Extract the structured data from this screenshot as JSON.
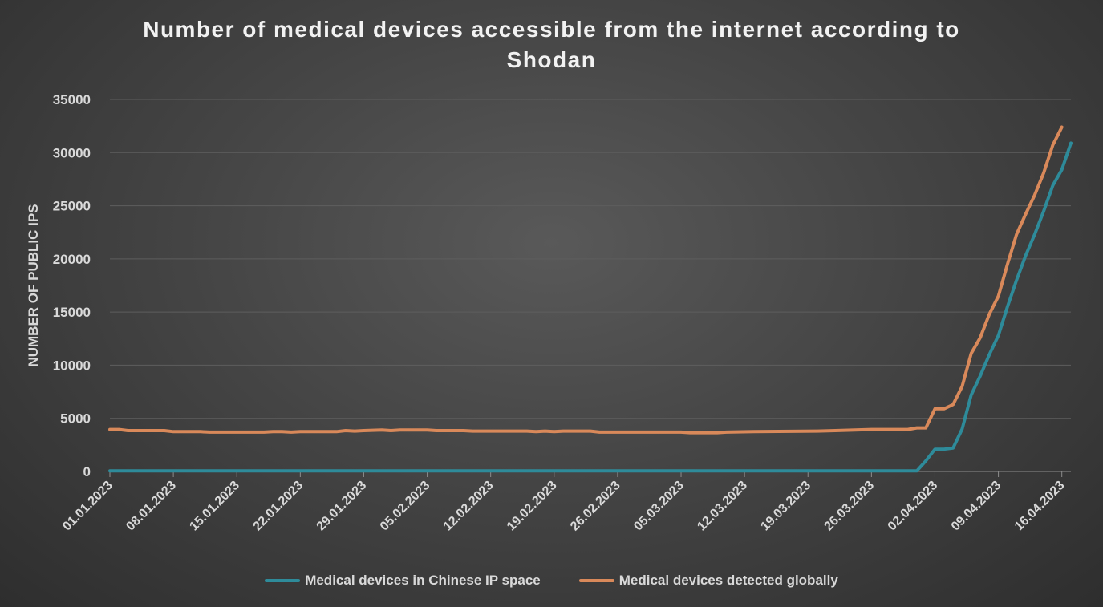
{
  "chart_data": {
    "type": "line",
    "title_line1": "Number of medical devices accessible from the internet according to",
    "title_line2": "Shodan",
    "xlabel": "",
    "ylabel": "NUMBER OF PUBLIC IPS",
    "ylim": [
      0,
      35000
    ],
    "yticks": [
      0,
      5000,
      10000,
      15000,
      20000,
      25000,
      30000,
      35000
    ],
    "x_start": "2023-01-01",
    "x_end": "2023-04-17",
    "xticks": [
      "01.01.2023",
      "08.01.2023",
      "15.01.2023",
      "22.01.2023",
      "29.01.2023",
      "05.02.2023",
      "12.02.2023",
      "19.02.2023",
      "26.02.2023",
      "05.03.2023",
      "12.03.2023",
      "19.03.2023",
      "26.03.2023",
      "02.04.2023",
      "09.04.2023",
      "16.04.2023"
    ],
    "grid": true,
    "legend_position": "bottom",
    "series": [
      {
        "name": "Medical devices in Chinese IP space",
        "color": "#2e8b9a",
        "points": [
          [
            "2023-01-01",
            50
          ],
          [
            "2023-03-31",
            50
          ],
          [
            "2023-04-01",
            1000
          ],
          [
            "2023-04-02",
            2100
          ],
          [
            "2023-04-03",
            2100
          ],
          [
            "2023-04-04",
            2200
          ],
          [
            "2023-04-05",
            4000
          ],
          [
            "2023-04-06",
            7200
          ],
          [
            "2023-04-07",
            9000
          ],
          [
            "2023-04-08",
            11000
          ],
          [
            "2023-04-09",
            12800
          ],
          [
            "2023-04-10",
            15500
          ],
          [
            "2023-04-11",
            18000
          ],
          [
            "2023-04-12",
            20300
          ],
          [
            "2023-04-13",
            22300
          ],
          [
            "2023-04-14",
            24500
          ],
          [
            "2023-04-15",
            26900
          ],
          [
            "2023-04-16",
            28400
          ],
          [
            "2023-04-17",
            30900
          ]
        ]
      },
      {
        "name": "Medical devices detected globally",
        "color": "#d9895a",
        "points": [
          [
            "2023-01-01",
            3950
          ],
          [
            "2023-01-02",
            3950
          ],
          [
            "2023-01-03",
            3850
          ],
          [
            "2023-01-05",
            3850
          ],
          [
            "2023-01-07",
            3850
          ],
          [
            "2023-01-08",
            3750
          ],
          [
            "2023-01-11",
            3750
          ],
          [
            "2023-01-12",
            3700
          ],
          [
            "2023-01-18",
            3700
          ],
          [
            "2023-01-19",
            3750
          ],
          [
            "2023-01-20",
            3750
          ],
          [
            "2023-01-21",
            3700
          ],
          [
            "2023-01-22",
            3750
          ],
          [
            "2023-01-26",
            3750
          ],
          [
            "2023-01-27",
            3850
          ],
          [
            "2023-01-28",
            3800
          ],
          [
            "2023-01-29",
            3850
          ],
          [
            "2023-01-31",
            3900
          ],
          [
            "2023-02-01",
            3850
          ],
          [
            "2023-02-02",
            3900
          ],
          [
            "2023-02-05",
            3900
          ],
          [
            "2023-02-06",
            3850
          ],
          [
            "2023-02-09",
            3850
          ],
          [
            "2023-02-10",
            3800
          ],
          [
            "2023-02-16",
            3800
          ],
          [
            "2023-02-17",
            3750
          ],
          [
            "2023-02-18",
            3800
          ],
          [
            "2023-02-19",
            3750
          ],
          [
            "2023-02-20",
            3800
          ],
          [
            "2023-02-23",
            3800
          ],
          [
            "2023-02-24",
            3700
          ],
          [
            "2023-03-05",
            3700
          ],
          [
            "2023-03-06",
            3650
          ],
          [
            "2023-03-09",
            3650
          ],
          [
            "2023-03-10",
            3700
          ],
          [
            "2023-03-13",
            3750
          ],
          [
            "2023-03-20",
            3800
          ],
          [
            "2023-03-22",
            3850
          ],
          [
            "2023-03-26",
            3950
          ],
          [
            "2023-03-30",
            3950
          ],
          [
            "2023-03-31",
            4100
          ],
          [
            "2023-04-01",
            4100
          ],
          [
            "2023-04-02",
            5900
          ],
          [
            "2023-04-03",
            5900
          ],
          [
            "2023-04-04",
            6300
          ],
          [
            "2023-04-05",
            8000
          ],
          [
            "2023-04-06",
            11100
          ],
          [
            "2023-04-07",
            12600
          ],
          [
            "2023-04-08",
            14800
          ],
          [
            "2023-04-09",
            16500
          ],
          [
            "2023-04-10",
            19500
          ],
          [
            "2023-04-11",
            22300
          ],
          [
            "2023-04-12",
            24200
          ],
          [
            "2023-04-13",
            26000
          ],
          [
            "2023-04-14",
            28100
          ],
          [
            "2023-04-15",
            30700
          ],
          [
            "2023-04-16",
            32400
          ]
        ]
      }
    ]
  }
}
